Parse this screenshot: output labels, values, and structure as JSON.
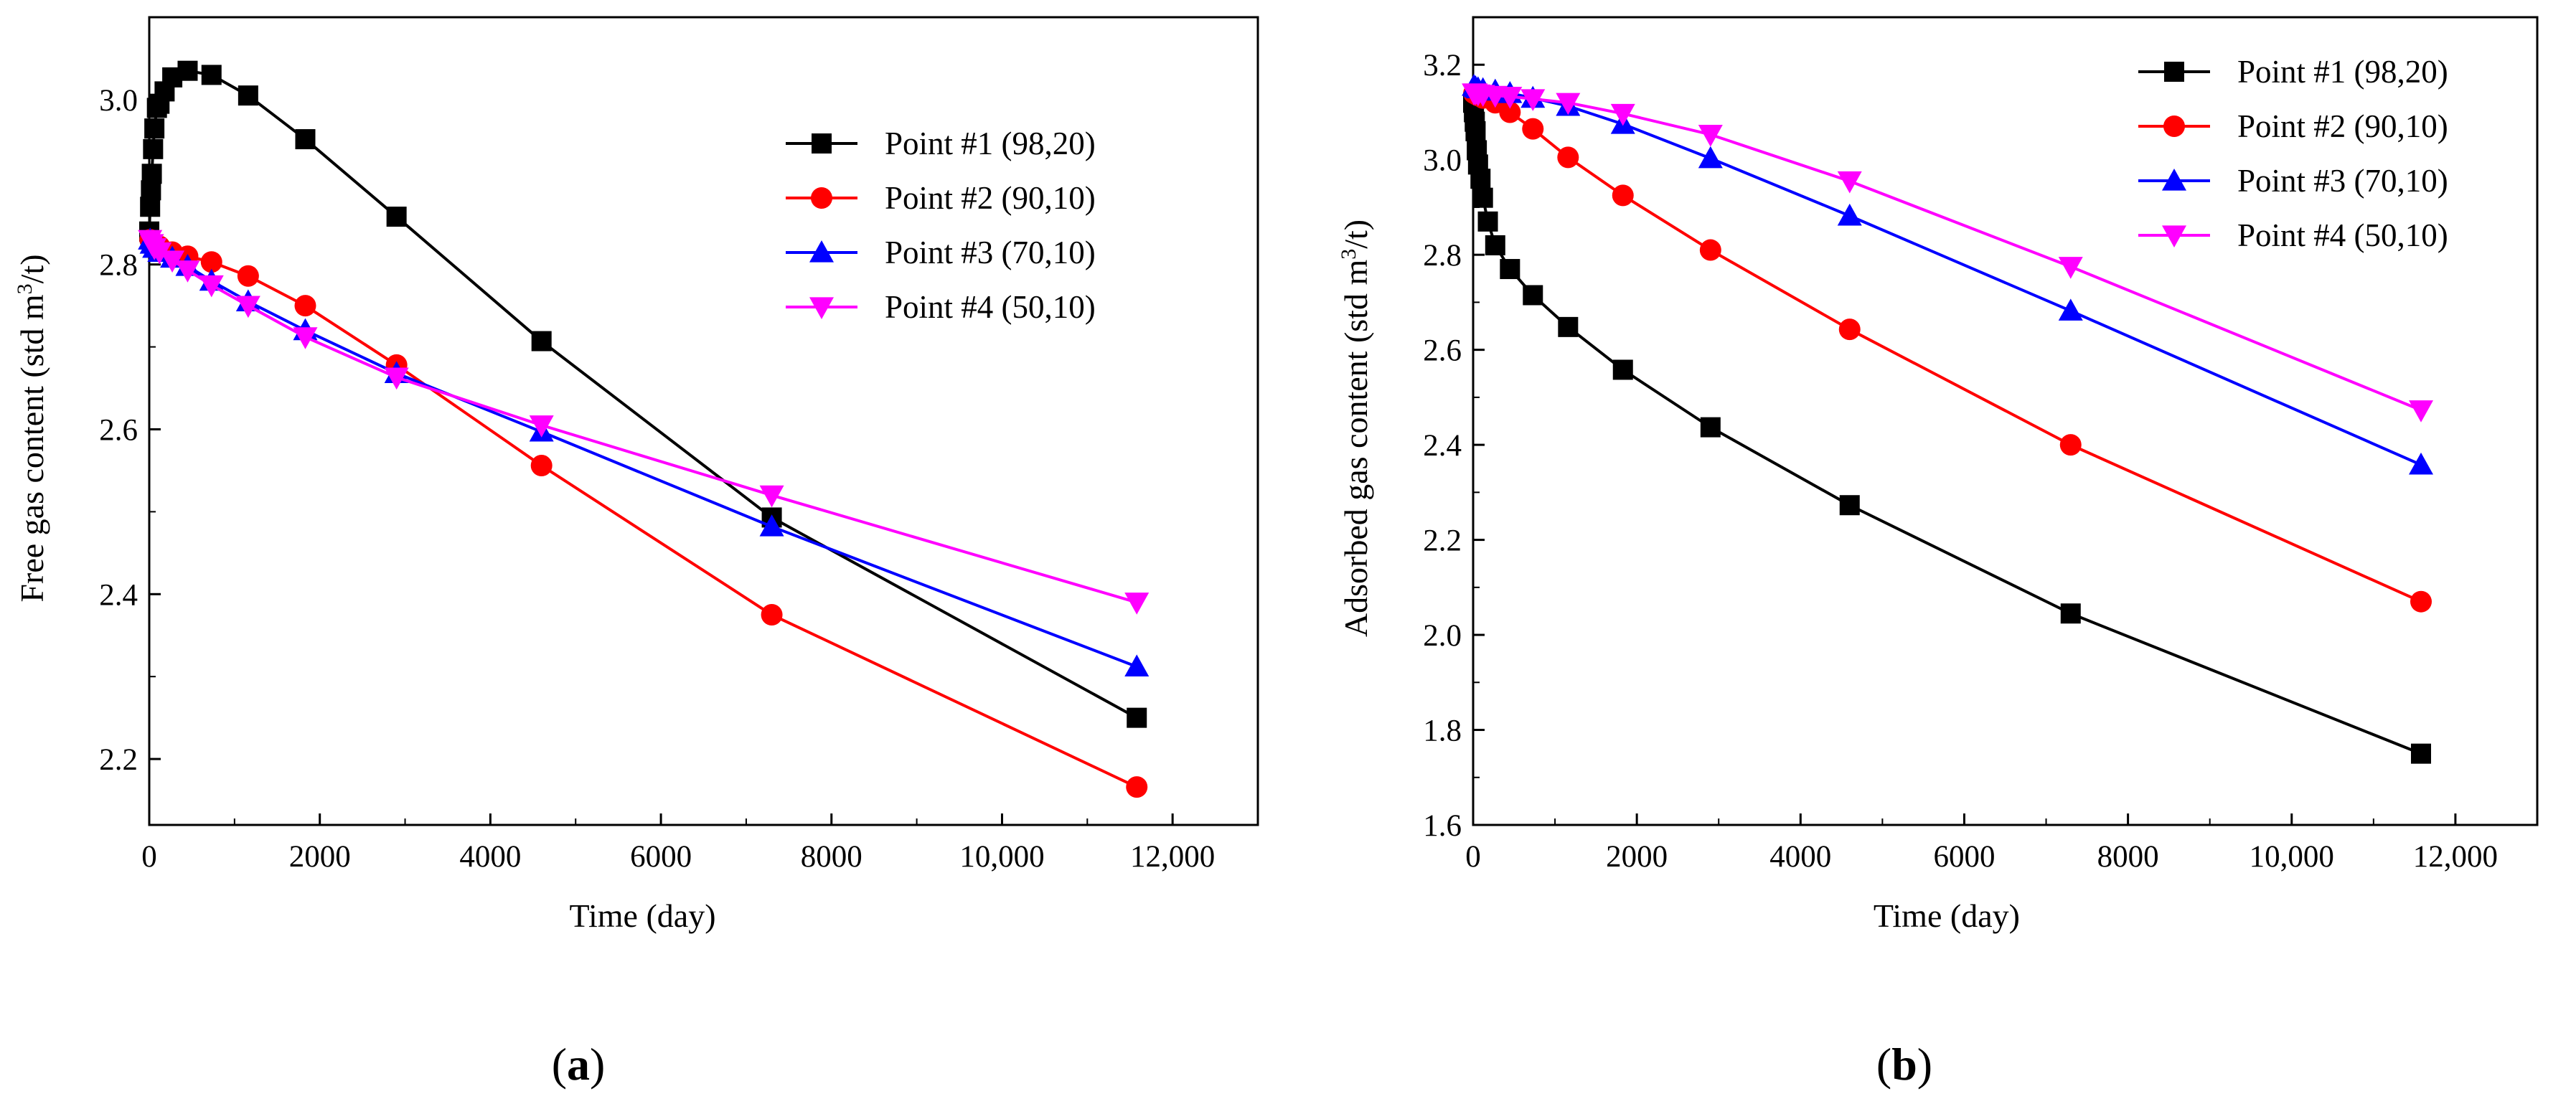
{
  "chart_data": [
    {
      "type": "line",
      "panel_label": "(a)",
      "panel_letter": "a",
      "xlabel": "Time (day)",
      "ylabel": "Free gas content (std m",
      "ylabel_sup": "3",
      "ylabel_suffix": "/t)",
      "xlim": [
        0,
        13000
      ],
      "ylim": [
        2.12,
        3.1
      ],
      "xticks": [
        0,
        2000,
        4000,
        6000,
        8000,
        10000,
        12000
      ],
      "xtick_labels": [
        "0",
        "2000",
        "4000",
        "6000",
        "8000",
        "10,000",
        "12,000"
      ],
      "yticks": [
        2.2,
        2.4,
        2.6,
        2.8,
        3.0
      ],
      "ytick_labels": [
        "2.2",
        "2.4",
        "2.6",
        "2.8",
        "3.0"
      ],
      "legend_position": "top-right",
      "series": [
        {
          "name": "Point #1 (98,20)",
          "color": "#000000",
          "marker": "square",
          "x": [
            0,
            10,
            20,
            30,
            45,
            60,
            90,
            120,
            180,
            270,
            450,
            730,
            1160,
            1830,
            2900,
            4600,
            7300,
            11580
          ],
          "y": [
            2.84,
            2.87,
            2.89,
            2.91,
            2.94,
            2.965,
            2.99,
            2.995,
            3.01,
            3.027,
            3.035,
            3.03,
            3.005,
            2.952,
            2.858,
            2.707,
            2.493,
            2.25
          ]
        },
        {
          "name": "Point #2 (90,10)",
          "color": "#ff0000",
          "marker": "circle",
          "x": [
            10,
            30,
            60,
            120,
            270,
            450,
            730,
            1160,
            1830,
            2900,
            4600,
            7300,
            11580
          ],
          "y": [
            2.83,
            2.828,
            2.825,
            2.822,
            2.815,
            2.81,
            2.803,
            2.786,
            2.75,
            2.678,
            2.556,
            2.375,
            2.166
          ]
        },
        {
          "name": "Point #3 (70,10)",
          "color": "#0000ff",
          "marker": "triangle-up",
          "x": [
            10,
            30,
            60,
            120,
            270,
            450,
            730,
            1160,
            1830,
            2900,
            4600,
            7300,
            11580
          ],
          "y": [
            2.83,
            2.825,
            2.82,
            2.815,
            2.808,
            2.798,
            2.78,
            2.755,
            2.72,
            2.668,
            2.597,
            2.482,
            2.312
          ]
        },
        {
          "name": "Point #4 (50,10)",
          "color": "#ff00ff",
          "marker": "triangle-down",
          "x": [
            10,
            30,
            60,
            120,
            270,
            450,
            730,
            1160,
            1830,
            2900,
            4600,
            7300,
            11580
          ],
          "y": [
            2.83,
            2.825,
            2.82,
            2.815,
            2.805,
            2.793,
            2.775,
            2.75,
            2.712,
            2.663,
            2.605,
            2.52,
            2.39
          ]
        }
      ]
    },
    {
      "type": "line",
      "panel_label": "(b)",
      "panel_letter": "b",
      "xlabel": "Time (day)",
      "ylabel": "Adsorbed gas content (std m",
      "ylabel_sup": "3",
      "ylabel_suffix": "/t)",
      "xlim": [
        0,
        13000
      ],
      "ylim": [
        1.6,
        3.3
      ],
      "xticks": [
        0,
        2000,
        4000,
        6000,
        8000,
        10000,
        12000
      ],
      "xtick_labels": [
        "0",
        "2000",
        "4000",
        "6000",
        "8000",
        "10,000",
        "12,000"
      ],
      "yticks": [
        1.6,
        1.8,
        2.0,
        2.2,
        2.4,
        2.6,
        2.8,
        3.0,
        3.2
      ],
      "ytick_labels": [
        "1.6",
        "1.8",
        "2.0",
        "2.2",
        "2.4",
        "2.6",
        "2.8",
        "3.0",
        "3.2"
      ],
      "legend_position": "top-right",
      "series": [
        {
          "name": "Point #1 (98,20)",
          "color": "#000000",
          "marker": "square",
          "x": [
            0,
            10,
            20,
            30,
            45,
            60,
            90,
            120,
            180,
            270,
            450,
            730,
            1160,
            1830,
            2900,
            4600,
            7300,
            11580
          ],
          "y": [
            3.12,
            3.1,
            3.08,
            3.06,
            3.02,
            2.99,
            2.96,
            2.92,
            2.87,
            2.82,
            2.77,
            2.715,
            2.648,
            2.558,
            2.437,
            2.273,
            2.045,
            1.75
          ]
        },
        {
          "name": "Point #2 (90,10)",
          "color": "#ff0000",
          "marker": "circle",
          "x": [
            10,
            30,
            60,
            120,
            270,
            450,
            730,
            1160,
            1830,
            2900,
            4600,
            7300,
            11580
          ],
          "y": [
            3.14,
            3.138,
            3.135,
            3.13,
            3.12,
            3.1,
            3.065,
            3.005,
            2.925,
            2.81,
            2.643,
            2.4,
            2.07
          ]
        },
        {
          "name": "Point #3 (70,10)",
          "color": "#0000ff",
          "marker": "triangle-up",
          "x": [
            10,
            30,
            60,
            120,
            270,
            450,
            730,
            1160,
            1830,
            2900,
            4600,
            7300,
            11580
          ],
          "y": [
            3.155,
            3.152,
            3.15,
            3.148,
            3.145,
            3.14,
            3.13,
            3.113,
            3.075,
            3.003,
            2.882,
            2.682,
            2.358
          ]
        },
        {
          "name": "Point #4 (50,10)",
          "color": "#ff00ff",
          "marker": "triangle-down",
          "x": [
            10,
            30,
            60,
            120,
            270,
            450,
            730,
            1160,
            1830,
            2900,
            4600,
            7300,
            11580
          ],
          "y": [
            3.14,
            3.14,
            3.138,
            3.137,
            3.135,
            3.133,
            3.128,
            3.12,
            3.097,
            3.053,
            2.955,
            2.775,
            2.473
          ]
        }
      ]
    }
  ]
}
